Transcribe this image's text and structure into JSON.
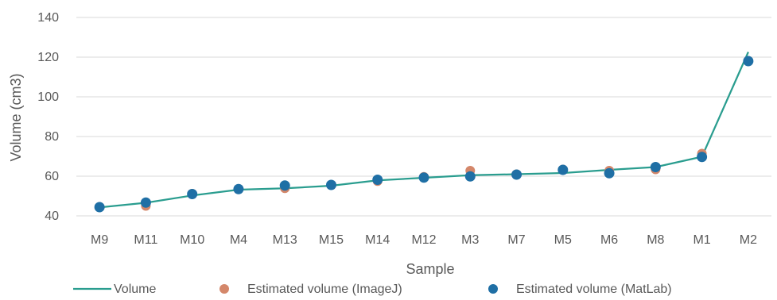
{
  "chart_data": {
    "type": "line",
    "xlabel": "Sample",
    "ylabel": "Volume (cm3)",
    "ylim": [
      40,
      140
    ],
    "yticks": [
      40,
      60,
      80,
      100,
      120,
      140
    ],
    "grid": true,
    "legend_position": "bottom",
    "categories": [
      "M9",
      "M11",
      "M10",
      "M4",
      "M13",
      "M15",
      "M14",
      "M12",
      "M3",
      "M7",
      "M5",
      "M6",
      "M8",
      "M1",
      "M2"
    ],
    "series": [
      {
        "name": "Volume",
        "kind": "line",
        "color": "#2a9d8f",
        "values": [
          44.3,
          46.6,
          50.3,
          53.2,
          53.9,
          55.2,
          57.9,
          59.2,
          60.5,
          61.0,
          61.6,
          63.2,
          64.6,
          69.8,
          122.6
        ]
      },
      {
        "name": "Estimated volume (ImageJ)",
        "kind": "scatter",
        "color": "#d4876a",
        "values": [
          44.5,
          45.0,
          51.2,
          53.6,
          53.9,
          55.6,
          57.5,
          59.7,
          62.8,
          61.0,
          63.4,
          62.8,
          63.4,
          71.4,
          118.2
        ]
      },
      {
        "name": "Estimated volume (MatLab)",
        "kind": "scatter",
        "color": "#1f6fa5",
        "values": [
          44.4,
          46.7,
          51.0,
          53.5,
          55.3,
          55.6,
          58.2,
          59.3,
          59.9,
          60.8,
          63.2,
          61.5,
          64.6,
          69.7,
          118.0
        ]
      }
    ]
  }
}
